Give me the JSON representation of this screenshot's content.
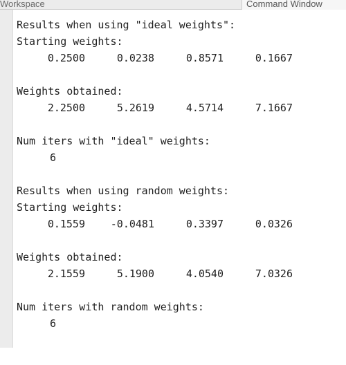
{
  "tabs": {
    "workspace": "Workspace",
    "command_window": "Command Window"
  },
  "console": {
    "ideal": {
      "heading": "Results when using \"ideal weights\":",
      "starting_label": "Starting weights:",
      "starting_values": [
        "0.2500",
        "0.0238",
        "0.8571",
        "0.1667"
      ],
      "obtained_label": "Weights obtained:",
      "obtained_values": [
        "2.2500",
        "5.2619",
        "4.5714",
        "7.1667"
      ],
      "iters_label": "Num iters with \"ideal\" weights:",
      "iters_value": "6"
    },
    "random": {
      "heading": "Results when using random weights:",
      "starting_label": "Starting weights:",
      "starting_values": [
        "0.1559",
        "-0.0481",
        "0.3397",
        "0.0326"
      ],
      "obtained_label": "Weights obtained:",
      "obtained_values": [
        "2.1559",
        "5.1900",
        "4.0540",
        "7.0326"
      ],
      "iters_label": "Num iters with random weights:",
      "iters_value": "6"
    }
  }
}
